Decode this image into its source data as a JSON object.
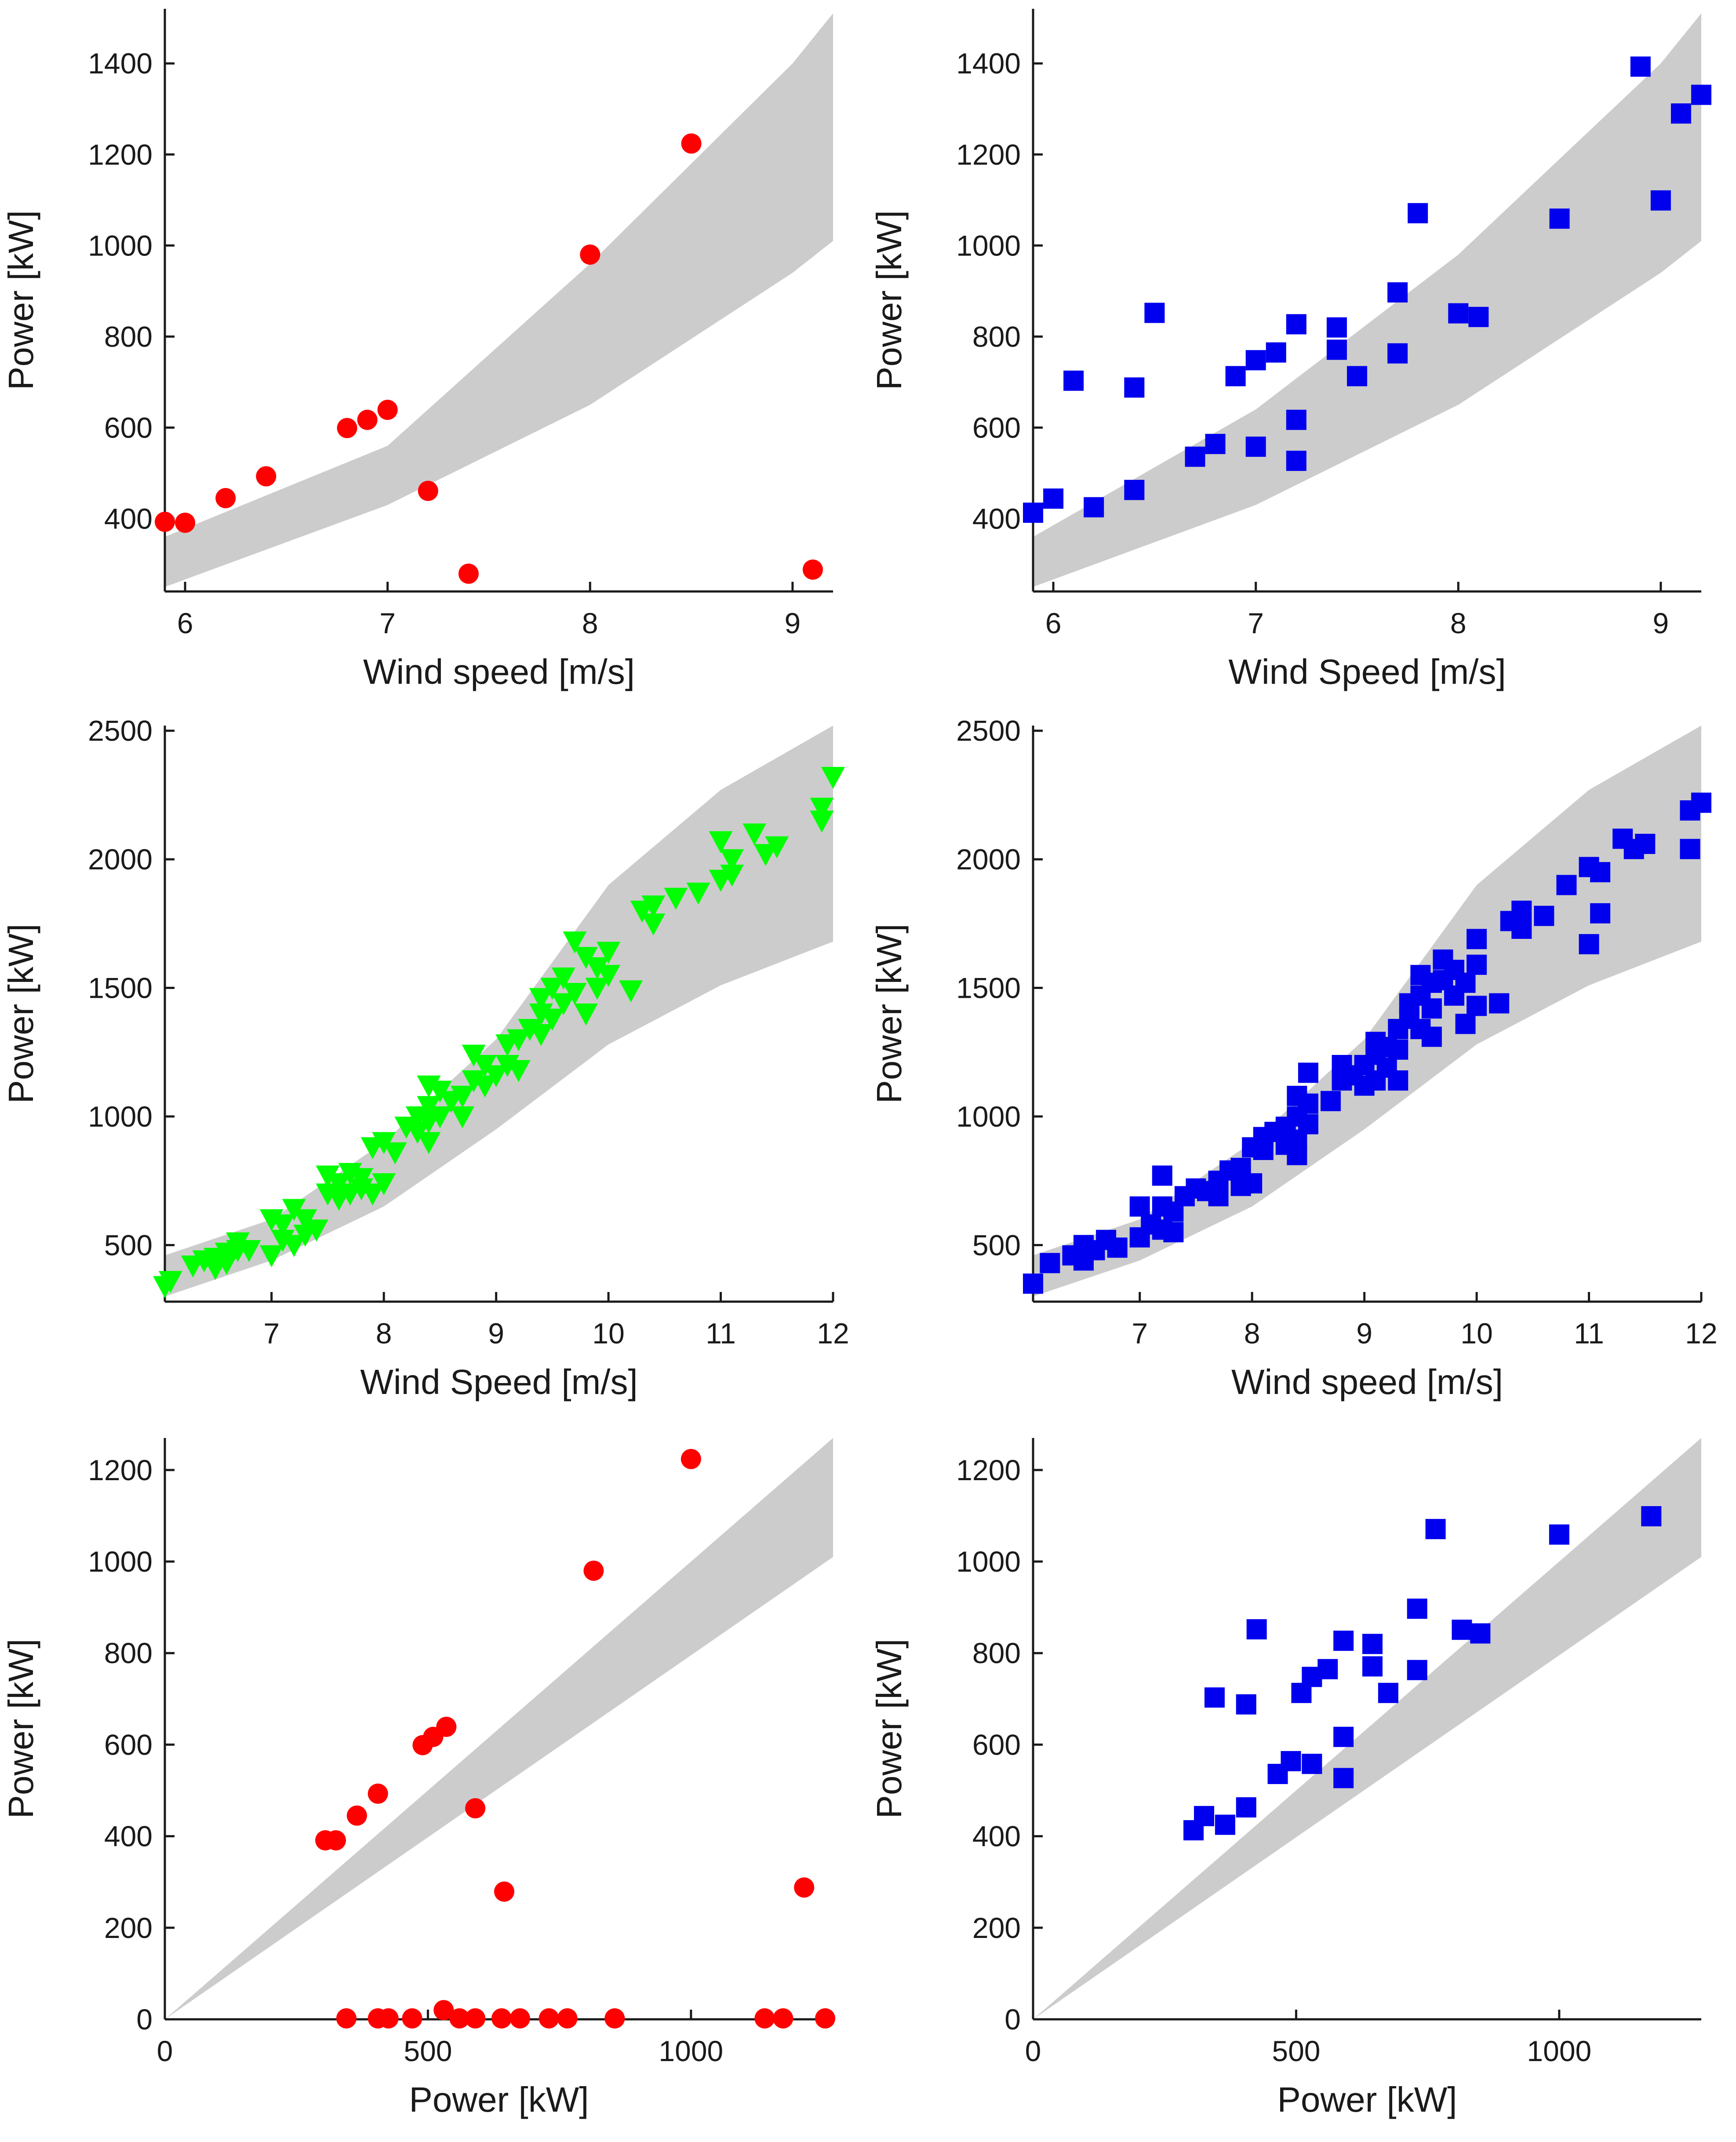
{
  "colors": {
    "red": "#ff0000",
    "blue": "#0000ee",
    "green": "#00ff00",
    "band": "#cccccc",
    "axis": "#1a1a1a"
  },
  "chart_data": [
    {
      "id": "top-left",
      "type": "scatter",
      "xlabel": "Wind speed [m/s]",
      "ylabel": "Power [kW]",
      "xlim": [
        5.9,
        9.2
      ],
      "ylim": [
        240,
        1520
      ],
      "xticks": [
        6,
        7,
        8,
        9
      ],
      "yticks": [
        400,
        600,
        800,
        1000,
        1200,
        1400
      ],
      "marker": "circle",
      "color": "#ff0000",
      "band_upper": [
        [
          5.9,
          360
        ],
        [
          7,
          560
        ],
        [
          8,
          960
        ],
        [
          9,
          1400
        ],
        [
          9.2,
          1510
        ]
      ],
      "band_lower": [
        [
          5.9,
          250
        ],
        [
          7,
          430
        ],
        [
          8,
          650
        ],
        [
          9,
          940
        ],
        [
          9.2,
          1010
        ]
      ],
      "points": [
        [
          5.9,
          393
        ],
        [
          6.0,
          391
        ],
        [
          6.2,
          445
        ],
        [
          6.4,
          493
        ],
        [
          6.8,
          599
        ],
        [
          6.9,
          617
        ],
        [
          7.0,
          639
        ],
        [
          7.2,
          461
        ],
        [
          7.4,
          279
        ],
        [
          8.0,
          980
        ],
        [
          8.5,
          1224
        ],
        [
          9.1,
          288
        ]
      ]
    },
    {
      "id": "top-right",
      "type": "scatter",
      "xlabel": "Wind Speed [m/s]",
      "ylabel": "Power [kW]",
      "xlim": [
        5.9,
        9.2
      ],
      "ylim": [
        240,
        1520
      ],
      "xticks": [
        6,
        7,
        8,
        9
      ],
      "yticks": [
        400,
        600,
        800,
        1000,
        1200,
        1400
      ],
      "marker": "square",
      "color": "#0000ee",
      "band_upper": [
        [
          5.9,
          360
        ],
        [
          7,
          640
        ],
        [
          8,
          980
        ],
        [
          9,
          1400
        ],
        [
          9.2,
          1510
        ]
      ],
      "band_lower": [
        [
          5.9,
          250
        ],
        [
          7,
          430
        ],
        [
          8,
          650
        ],
        [
          9,
          940
        ],
        [
          9.2,
          1010
        ]
      ],
      "points": [
        [
          5.9,
          413
        ],
        [
          6.0,
          444
        ],
        [
          6.1,
          703
        ],
        [
          6.2,
          425
        ],
        [
          6.4,
          463
        ],
        [
          6.4,
          688
        ],
        [
          6.5,
          852
        ],
        [
          6.7,
          536
        ],
        [
          6.8,
          564
        ],
        [
          6.9,
          713
        ],
        [
          7.0,
          558
        ],
        [
          7.0,
          748
        ],
        [
          7.1,
          765
        ],
        [
          7.2,
          827
        ],
        [
          7.2,
          617
        ],
        [
          7.2,
          527
        ],
        [
          7.4,
          820
        ],
        [
          7.4,
          771
        ],
        [
          7.5,
          713
        ],
        [
          7.7,
          897
        ],
        [
          7.7,
          763
        ],
        [
          7.8,
          1071
        ],
        [
          8.0,
          851
        ],
        [
          8.1,
          843
        ],
        [
          8.5,
          1059
        ],
        [
          8.9,
          1393
        ],
        [
          9.0,
          1099
        ],
        [
          9.1,
          1290
        ],
        [
          9.2,
          1331
        ]
      ]
    },
    {
      "id": "middle-left",
      "type": "scatter",
      "xlabel": "Wind Speed [m/s]",
      "ylabel": "Power [kW]",
      "xlim": [
        6.05,
        12.0
      ],
      "ylim": [
        280,
        2520
      ],
      "xticks": [
        7,
        8,
        9,
        10,
        11,
        12
      ],
      "yticks": [
        500,
        1000,
        1500,
        2000,
        2500
      ],
      "marker": "triangle-down",
      "color": "#00ff00",
      "band_upper": [
        [
          6.05,
          460
        ],
        [
          7,
          600
        ],
        [
          8,
          900
        ],
        [
          9,
          1300
        ],
        [
          10,
          1900
        ],
        [
          11,
          2270
        ],
        [
          12,
          2520
        ]
      ],
      "band_lower": [
        [
          6.05,
          300
        ],
        [
          7,
          440
        ],
        [
          8,
          650
        ],
        [
          9,
          950
        ],
        [
          10,
          1280
        ],
        [
          11,
          1510
        ],
        [
          12,
          1680
        ]
      ],
      "points": [
        [
          6.05,
          340
        ],
        [
          6.1,
          360
        ],
        [
          6.3,
          420
        ],
        [
          6.4,
          440
        ],
        [
          6.5,
          450
        ],
        [
          6.5,
          410
        ],
        [
          6.6,
          470
        ],
        [
          6.6,
          430
        ],
        [
          6.7,
          510
        ],
        [
          6.7,
          480
        ],
        [
          6.8,
          480
        ],
        [
          7.0,
          600
        ],
        [
          7.0,
          460
        ],
        [
          7.1,
          520
        ],
        [
          7.1,
          580
        ],
        [
          7.2,
          640
        ],
        [
          7.2,
          500
        ],
        [
          7.3,
          540
        ],
        [
          7.3,
          600
        ],
        [
          7.4,
          560
        ],
        [
          7.5,
          770
        ],
        [
          7.5,
          700
        ],
        [
          7.6,
          740
        ],
        [
          7.6,
          680
        ],
        [
          7.7,
          780
        ],
        [
          7.7,
          700
        ],
        [
          7.8,
          760
        ],
        [
          7.8,
          720
        ],
        [
          7.9,
          880
        ],
        [
          7.9,
          700
        ],
        [
          8.0,
          900
        ],
        [
          8.0,
          740
        ],
        [
          8.1,
          860
        ],
        [
          8.2,
          960
        ],
        [
          8.3,
          1000
        ],
        [
          8.3,
          940
        ],
        [
          8.4,
          1120
        ],
        [
          8.4,
          1040
        ],
        [
          8.4,
          980
        ],
        [
          8.4,
          900
        ],
        [
          8.5,
          1100
        ],
        [
          8.5,
          1000
        ],
        [
          8.6,
          1060
        ],
        [
          8.7,
          1080
        ],
        [
          8.7,
          1000
        ],
        [
          8.8,
          1240
        ],
        [
          8.8,
          1140
        ],
        [
          8.9,
          1200
        ],
        [
          8.9,
          1120
        ],
        [
          9.0,
          1160
        ],
        [
          9.1,
          1280
        ],
        [
          9.1,
          1200
        ],
        [
          9.2,
          1300
        ],
        [
          9.2,
          1180
        ],
        [
          9.3,
          1340
        ],
        [
          9.4,
          1460
        ],
        [
          9.4,
          1400
        ],
        [
          9.4,
          1320
        ],
        [
          9.5,
          1500
        ],
        [
          9.5,
          1380
        ],
        [
          9.6,
          1540
        ],
        [
          9.6,
          1440
        ],
        [
          9.7,
          1680
        ],
        [
          9.7,
          1480
        ],
        [
          9.8,
          1620
        ],
        [
          9.8,
          1400
        ],
        [
          9.9,
          1580
        ],
        [
          9.9,
          1500
        ],
        [
          10.0,
          1640
        ],
        [
          10.0,
          1550
        ],
        [
          10.2,
          1490
        ],
        [
          10.3,
          1800
        ],
        [
          10.4,
          1750
        ],
        [
          10.4,
          1820
        ],
        [
          10.6,
          1850
        ],
        [
          10.8,
          1870
        ],
        [
          11.0,
          2070
        ],
        [
          11.0,
          1920
        ],
        [
          11.1,
          2000
        ],
        [
          11.1,
          1940
        ],
        [
          11.3,
          2100
        ],
        [
          11.4,
          2020
        ],
        [
          11.5,
          2050
        ],
        [
          11.9,
          2200
        ],
        [
          11.9,
          2150
        ],
        [
          12.0,
          2320
        ]
      ]
    },
    {
      "id": "middle-right",
      "type": "scatter",
      "xlabel": "Wind speed [m/s]",
      "ylabel": "Power [kW]",
      "xlim": [
        6.05,
        12.0
      ],
      "ylim": [
        280,
        2520
      ],
      "xticks": [
        7,
        8,
        9,
        10,
        11,
        12
      ],
      "yticks": [
        500,
        1000,
        1500,
        2000,
        2500
      ],
      "marker": "square",
      "color": "#0000ee",
      "band_upper": [
        [
          6.05,
          460
        ],
        [
          7,
          600
        ],
        [
          8,
          900
        ],
        [
          9,
          1300
        ],
        [
          10,
          1900
        ],
        [
          11,
          2270
        ],
        [
          12,
          2520
        ]
      ],
      "band_lower": [
        [
          6.05,
          300
        ],
        [
          7,
          440
        ],
        [
          8,
          650
        ],
        [
          9,
          950
        ],
        [
          10,
          1280
        ],
        [
          11,
          1510
        ],
        [
          12,
          1680
        ]
      ],
      "points": [
        [
          6.05,
          350
        ],
        [
          6.2,
          430
        ],
        [
          6.4,
          460
        ],
        [
          6.5,
          500
        ],
        [
          6.5,
          440
        ],
        [
          6.6,
          480
        ],
        [
          6.7,
          520
        ],
        [
          6.8,
          490
        ],
        [
          7.0,
          650
        ],
        [
          7.0,
          530
        ],
        [
          7.1,
          580
        ],
        [
          7.2,
          770
        ],
        [
          7.2,
          650
        ],
        [
          7.2,
          560
        ],
        [
          7.3,
          630
        ],
        [
          7.3,
          550
        ],
        [
          7.4,
          690
        ],
        [
          7.5,
          720
        ],
        [
          7.6,
          710
        ],
        [
          7.7,
          750
        ],
        [
          7.7,
          690
        ],
        [
          7.8,
          790
        ],
        [
          7.9,
          800
        ],
        [
          7.9,
          730
        ],
        [
          8.0,
          880
        ],
        [
          8.0,
          740
        ],
        [
          8.1,
          920
        ],
        [
          8.1,
          870
        ],
        [
          8.2,
          940
        ],
        [
          8.3,
          960
        ],
        [
          8.3,
          890
        ],
        [
          8.4,
          1080
        ],
        [
          8.4,
          1000
        ],
        [
          8.4,
          910
        ],
        [
          8.4,
          850
        ],
        [
          8.5,
          1170
        ],
        [
          8.5,
          1050
        ],
        [
          8.5,
          970
        ],
        [
          8.7,
          1060
        ],
        [
          8.8,
          1200
        ],
        [
          8.8,
          1140
        ],
        [
          8.9,
          1160
        ],
        [
          9.0,
          1200
        ],
        [
          9.0,
          1120
        ],
        [
          9.1,
          1290
        ],
        [
          9.1,
          1240
        ],
        [
          9.1,
          1140
        ],
        [
          9.2,
          1270
        ],
        [
          9.2,
          1190
        ],
        [
          9.3,
          1340
        ],
        [
          9.3,
          1260
        ],
        [
          9.3,
          1140
        ],
        [
          9.4,
          1440
        ],
        [
          9.4,
          1380
        ],
        [
          9.5,
          1550
        ],
        [
          9.5,
          1470
        ],
        [
          9.5,
          1340
        ],
        [
          9.6,
          1520
        ],
        [
          9.6,
          1420
        ],
        [
          9.6,
          1310
        ],
        [
          9.7,
          1610
        ],
        [
          9.7,
          1530
        ],
        [
          9.8,
          1570
        ],
        [
          9.8,
          1470
        ],
        [
          9.9,
          1520
        ],
        [
          9.9,
          1360
        ],
        [
          10.0,
          1690
        ],
        [
          10.0,
          1590
        ],
        [
          10.0,
          1430
        ],
        [
          10.2,
          1440
        ],
        [
          10.3,
          1760
        ],
        [
          10.4,
          1800
        ],
        [
          10.4,
          1730
        ],
        [
          10.6,
          1780
        ],
        [
          10.8,
          1900
        ],
        [
          11.0,
          1970
        ],
        [
          11.0,
          1670
        ],
        [
          11.1,
          1950
        ],
        [
          11.1,
          1790
        ],
        [
          11.3,
          2080
        ],
        [
          11.4,
          2040
        ],
        [
          11.5,
          2060
        ],
        [
          11.9,
          2190
        ],
        [
          11.9,
          2040
        ],
        [
          12.0,
          2220
        ]
      ]
    },
    {
      "id": "bottom-left",
      "type": "scatter",
      "xlabel": "Power [kW]",
      "ylabel": "Power [kW]",
      "xlim": [
        0,
        1270
      ],
      "ylim": [
        0,
        1270
      ],
      "xticks": [
        0,
        500,
        1000
      ],
      "yticks": [
        0,
        200,
        400,
        600,
        800,
        1000,
        1200
      ],
      "marker": "circle",
      "color": "#ff0000",
      "band_upper": [
        [
          0,
          0
        ],
        [
          1270,
          1270
        ]
      ],
      "band_lower": [
        [
          0,
          0
        ],
        [
          1270,
          1010
        ]
      ],
      "band_top_right": [
        1270,
        1270
      ],
      "points": [
        [
          305,
          391
        ],
        [
          325,
          391
        ],
        [
          365,
          445
        ],
        [
          405,
          493
        ],
        [
          490,
          599
        ],
        [
          510,
          617
        ],
        [
          535,
          639
        ],
        [
          590,
          461
        ],
        [
          645,
          279
        ],
        [
          815,
          980
        ],
        [
          1000,
          1224
        ],
        [
          1215,
          288
        ],
        [
          345,
          2
        ],
        [
          405,
          2
        ],
        [
          425,
          2
        ],
        [
          470,
          2
        ],
        [
          530,
          20
        ],
        [
          560,
          2
        ],
        [
          590,
          2
        ],
        [
          640,
          2
        ],
        [
          675,
          2
        ],
        [
          730,
          2
        ],
        [
          765,
          2
        ],
        [
          855,
          2
        ],
        [
          1140,
          2
        ],
        [
          1175,
          2
        ],
        [
          1255,
          2
        ]
      ]
    },
    {
      "id": "bottom-right",
      "type": "scatter",
      "xlabel": "Power [kW]",
      "ylabel": "Power [kW]",
      "xlim": [
        0,
        1270
      ],
      "ylim": [
        0,
        1270
      ],
      "xticks": [
        0,
        500,
        1000
      ],
      "yticks": [
        0,
        200,
        400,
        600,
        800,
        1000,
        1200
      ],
      "marker": "square",
      "color": "#0000ee",
      "band_upper": [
        [
          0,
          0
        ],
        [
          1270,
          1270
        ]
      ],
      "band_lower": [
        [
          0,
          0
        ],
        [
          1270,
          1010
        ]
      ],
      "points": [
        [
          305,
          413
        ],
        [
          325,
          444
        ],
        [
          345,
          703
        ],
        [
          365,
          425
        ],
        [
          405,
          463
        ],
        [
          405,
          688
        ],
        [
          425,
          852
        ],
        [
          465,
          536
        ],
        [
          490,
          564
        ],
        [
          510,
          713
        ],
        [
          530,
          558
        ],
        [
          530,
          748
        ],
        [
          560,
          765
        ],
        [
          590,
          827
        ],
        [
          590,
          617
        ],
        [
          590,
          527
        ],
        [
          645,
          820
        ],
        [
          645,
          771
        ],
        [
          675,
          713
        ],
        [
          730,
          897
        ],
        [
          730,
          763
        ],
        [
          765,
          1071
        ],
        [
          815,
          851
        ],
        [
          850,
          843
        ],
        [
          1000,
          1059
        ],
        [
          1175,
          1099
        ]
      ]
    }
  ]
}
